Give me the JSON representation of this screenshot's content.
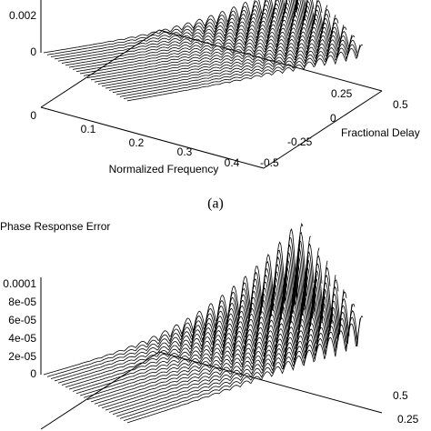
{
  "figure_a": {
    "z_ticks": [
      "0.002",
      "0"
    ],
    "floor_tick": "0",
    "frequency_ticks": [
      "0.1",
      "0.2",
      "0.3",
      "0.4"
    ],
    "frequency_label": "Normalized Frequency",
    "delay_ticks": [
      "0.5",
      "0.25",
      "0",
      "-0.25",
      "-0.5"
    ],
    "delay_label": "Fractional Delay",
    "caption": "(a)"
  },
  "figure_b": {
    "title": "Phase Response Error",
    "z_ticks": [
      "0.0001",
      "8e-05",
      "6e-05",
      "4e-05",
      "2e-05",
      "0"
    ],
    "delay_ticks": [
      "0.5",
      "0.25"
    ]
  }
}
